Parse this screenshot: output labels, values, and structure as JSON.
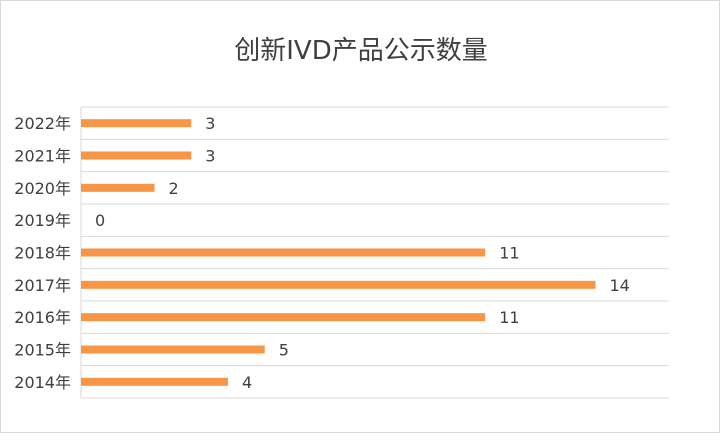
{
  "chart_data": {
    "type": "bar",
    "orientation": "horizontal",
    "title": "创新IVD产品公示数量",
    "categories": [
      "2022年",
      "2021年",
      "2020年",
      "2019年",
      "2018年",
      "2017年",
      "2016年",
      "2015年",
      "2014年"
    ],
    "values": [
      3,
      3,
      2,
      0,
      11,
      14,
      11,
      5,
      4
    ],
    "xlim": [
      0,
      16
    ],
    "xlabel": "",
    "ylabel": "",
    "data_labels": true,
    "legend": "none",
    "grid": "horizontal",
    "bar_color": "#f79646",
    "grid_color": "#d9d9d9"
  }
}
